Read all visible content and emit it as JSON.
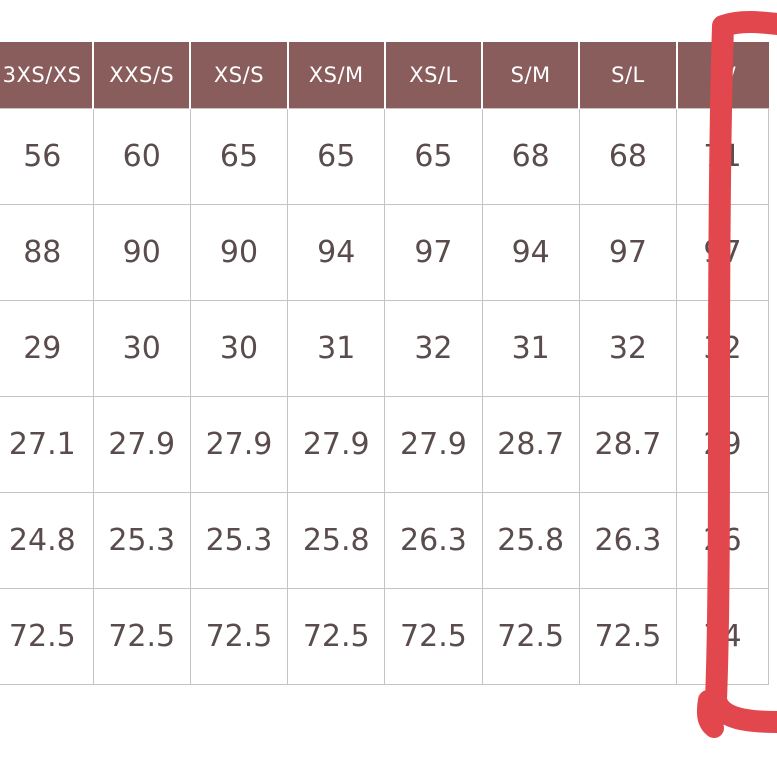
{
  "size_table": {
    "headers": [
      "3XS/XS",
      "XXS/S",
      "XS/S",
      "XS/M",
      "XS/L",
      "S/M",
      "S/L",
      "M/"
    ],
    "rows": [
      [
        "56",
        "60",
        "65",
        "65",
        "65",
        "68",
        "68",
        "71"
      ],
      [
        "88",
        "90",
        "90",
        "94",
        "97",
        "94",
        "97",
        "97"
      ],
      [
        "29",
        "30",
        "30",
        "31",
        "32",
        "31",
        "32",
        "32"
      ],
      [
        "27.1",
        "27.9",
        "27.9",
        "27.9",
        "27.9",
        "28.7",
        "28.7",
        "29"
      ],
      [
        "24.8",
        "25.3",
        "25.3",
        "25.8",
        "26.3",
        "25.8",
        "26.3",
        "26"
      ],
      [
        "72.5",
        "72.5",
        "72.5",
        "72.5",
        "72.5",
        "72.5",
        "72.5",
        "74"
      ]
    ]
  },
  "colors": {
    "header_background": "#8a5d5d",
    "header_text": "#ffffff",
    "cell_text": "#5a4c4c",
    "grid_line": "#c9c2c2",
    "highlight_marker": "#e2474d"
  },
  "annotation": {
    "icon": "hand-drawn-highlight-box",
    "highlighted_column": "M/"
  }
}
